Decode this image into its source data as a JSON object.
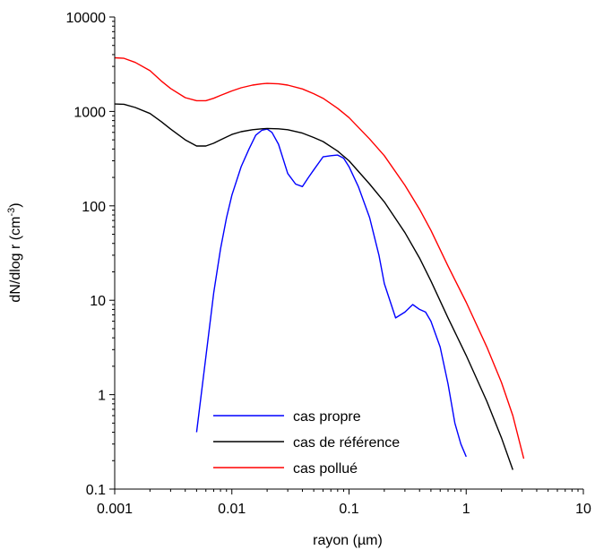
{
  "chart_data": {
    "type": "line",
    "title": "",
    "xlabel": "rayon (µm)",
    "ylabel_main": "dN/dlog r (cm",
    "ylabel_sup": "-3",
    "ylabel_close": ")",
    "x_scale": "log",
    "y_scale": "log",
    "xlim": [
      0.001,
      10
    ],
    "ylim": [
      0.1,
      10000
    ],
    "x_major_ticks": [
      0.001,
      0.01,
      0.1,
      1,
      10
    ],
    "x_tick_labels": [
      "0.001",
      "0.01",
      "0.1",
      "1",
      "10"
    ],
    "y_major_ticks": [
      0.1,
      1,
      10,
      100,
      1000,
      10000
    ],
    "y_tick_labels": [
      "0.1",
      "1",
      "10",
      "100",
      "1000",
      "10000"
    ],
    "grid": false,
    "legend_position": "bottom-center",
    "series": [
      {
        "name": "cas propre",
        "color": "#0000ff",
        "x": [
          0.005,
          0.006,
          0.007,
          0.008,
          0.009,
          0.01,
          0.012,
          0.014,
          0.016,
          0.018,
          0.02,
          0.022,
          0.025,
          0.03,
          0.035,
          0.04,
          0.045,
          0.05,
          0.06,
          0.07,
          0.08,
          0.09,
          0.1,
          0.12,
          0.15,
          0.18,
          0.2,
          0.25,
          0.3,
          0.35,
          0.4,
          0.45,
          0.5,
          0.6,
          0.7,
          0.8,
          0.9,
          1.0
        ],
        "y": [
          0.4,
          2.5,
          12,
          35,
          75,
          130,
          260,
          400,
          560,
          630,
          650,
          600,
          450,
          220,
          170,
          160,
          200,
          240,
          330,
          340,
          345,
          320,
          260,
          160,
          75,
          30,
          15,
          6.5,
          7.5,
          9,
          8,
          7.5,
          6,
          3.2,
          1.3,
          0.5,
          0.3,
          0.22
        ]
      },
      {
        "name": "cas de référence",
        "color": "#000000",
        "x": [
          0.001,
          0.0012,
          0.0015,
          0.002,
          0.0025,
          0.003,
          0.004,
          0.005,
          0.006,
          0.007,
          0.008,
          0.01,
          0.012,
          0.015,
          0.018,
          0.02,
          0.025,
          0.03,
          0.04,
          0.05,
          0.06,
          0.08,
          0.1,
          0.15,
          0.2,
          0.3,
          0.4,
          0.5,
          0.7,
          1.0,
          1.5,
          2.0,
          2.5
        ],
        "y": [
          1200,
          1190,
          1100,
          950,
          780,
          650,
          500,
          430,
          430,
          460,
          500,
          570,
          610,
          640,
          655,
          660,
          655,
          640,
          590,
          530,
          480,
          380,
          300,
          170,
          110,
          52,
          28,
          16,
          6.5,
          2.6,
          0.85,
          0.35,
          0.16
        ]
      },
      {
        "name": "cas pollué",
        "color": "#ff0000",
        "x": [
          0.001,
          0.0012,
          0.0015,
          0.002,
          0.0025,
          0.003,
          0.004,
          0.005,
          0.006,
          0.007,
          0.008,
          0.01,
          0.012,
          0.015,
          0.018,
          0.02,
          0.025,
          0.03,
          0.04,
          0.05,
          0.06,
          0.08,
          0.1,
          0.15,
          0.2,
          0.3,
          0.4,
          0.5,
          0.7,
          1.0,
          1.5,
          2.0,
          2.5,
          3.1
        ],
        "y": [
          3700,
          3650,
          3300,
          2700,
          2100,
          1750,
          1400,
          1300,
          1300,
          1380,
          1480,
          1650,
          1780,
          1900,
          1960,
          1980,
          1960,
          1900,
          1730,
          1540,
          1380,
          1080,
          860,
          510,
          340,
          165,
          92,
          55,
          23,
          9.5,
          3.2,
          1.35,
          0.6,
          0.21
        ]
      }
    ]
  }
}
